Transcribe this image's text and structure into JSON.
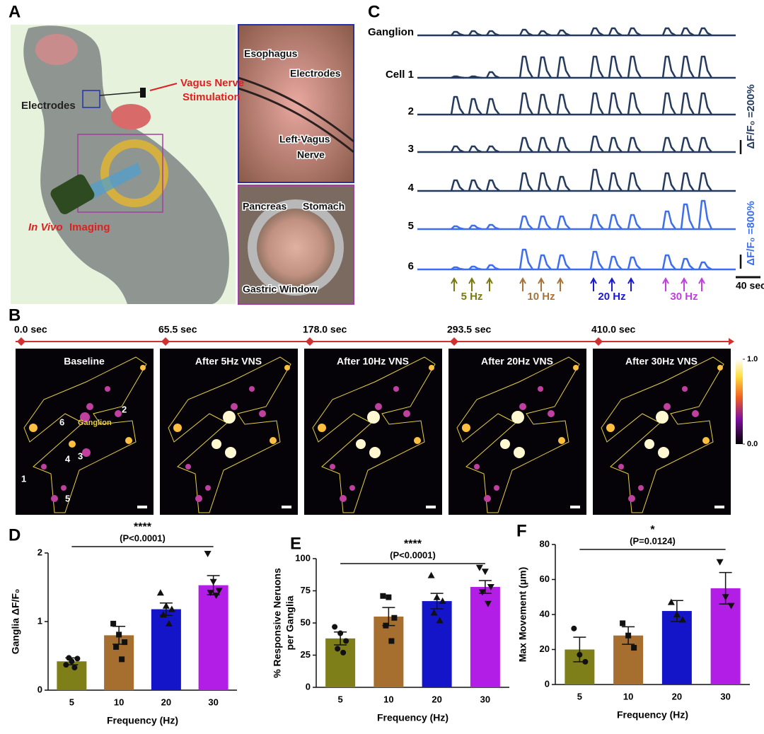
{
  "panel_a": {
    "label": "A",
    "stimulation": [
      "Vagus Nerve",
      "Stimulation"
    ],
    "electrodes": "Electrodes",
    "imaging": [
      "In Vivo",
      "Imaging"
    ],
    "photo_top": [
      "Esophagus",
      "Electrodes",
      "Left-Vagus",
      "Nerve"
    ],
    "photo_bottom": [
      "Pancreas",
      "Stomach",
      "Gastric Window"
    ]
  },
  "panel_b": {
    "label": "B",
    "times": [
      "0.0 sec",
      "65.5 sec",
      "178.0 sec",
      "293.5 sec",
      "410.0 sec"
    ],
    "titles": [
      "Baseline",
      "After 5Hz VNS",
      "After 10Hz VNS",
      "After 20Hz VNS",
      "After 30Hz VNS"
    ],
    "ganglion": "Ganglion",
    "cells": [
      "1",
      "2",
      "3",
      "4",
      "5",
      "6"
    ],
    "colorbar_ticks": [
      {
        "value": 1,
        "label": "1.0"
      },
      {
        "value": 0,
        "label": "0.0"
      }
    ]
  },
  "panel_c": {
    "label": "C",
    "groups": [
      {
        "color": "#243a5e",
        "scale": {
          "value": 200,
          "label": "ΔF/F₀ =200%"
        },
        "rows": [
          {
            "name": "Ganglion",
            "peaks": [
              50,
              60,
              60,
              80,
              60,
              70,
              100,
              100,
              100,
              100,
              100,
              100
            ]
          },
          {
            "name": "Cell 1",
            "peaks": [
              20,
              20,
              80,
              300,
              290,
              290,
              300,
              300,
              300,
              300,
              300,
              300
            ]
          },
          {
            "name": "2",
            "peaks": [
              250,
              220,
              220,
              300,
              280,
              280,
              300,
              300,
              300,
              300,
              300,
              300
            ]
          },
          {
            "name": "3",
            "peaks": [
              80,
              80,
              80,
              200,
              200,
              200,
              220,
              200,
              200,
              200,
              200,
              200
            ]
          },
          {
            "name": "4",
            "peaks": [
              150,
              150,
              150,
              250,
              250,
              200,
              300,
              250,
              250,
              250,
              250,
              250
            ]
          }
        ]
      },
      {
        "color": "#3d6ef0",
        "scale": {
          "value": 800,
          "label": "ΔF/F₀ =800%"
        },
        "rows": [
          {
            "name": "5",
            "peaks": [
              160,
              200,
              240,
              720,
              720,
              720,
              800,
              800,
              800,
              1000,
              1400,
              1600
            ]
          },
          {
            "name": "6",
            "peaks": [
              120,
              160,
              240,
              1120,
              800,
              800,
              1000,
              720,
              680,
              800,
              600,
              400
            ]
          }
        ]
      }
    ],
    "time_bar": {
      "value": 40,
      "label": "40 sec"
    },
    "frequencies": [
      {
        "label": "5 Hz",
        "color": "#7a7a10"
      },
      {
        "label": "10 Hz",
        "color": "#a8743a"
      },
      {
        "label": "20 Hz",
        "color": "#1a1ad0"
      },
      {
        "label": "30 Hz",
        "color": "#c040e0"
      }
    ]
  },
  "chart_data": [
    {
      "type": "bar",
      "label": "D",
      "annotation": "****",
      "subtitle": "(P<0.0001)",
      "categories": [
        "5",
        "10",
        "20",
        "30"
      ],
      "values": [
        0.42,
        0.8,
        1.18,
        1.53
      ],
      "errors": [
        0.05,
        0.13,
        0.09,
        0.14
      ],
      "points": [
        [
          0.37,
          0.42,
          0.46,
          0.47,
          0.33
        ],
        [
          0.97,
          0.81,
          0.7,
          0.63,
          0.45
        ],
        [
          1.42,
          1.23,
          1.18,
          1.1,
          0.97
        ],
        [
          1.99,
          1.58,
          1.45,
          1.42,
          1.38
        ]
      ],
      "colors": [
        "#7f7f1a",
        "#a66f2f",
        "#1414c8",
        "#b31ee6"
      ],
      "ylim": [
        0,
        2
      ],
      "yticks": [
        0,
        1,
        2
      ],
      "xlabel": "Frequency (Hz)",
      "ylabel": [
        "Ganglia ΔF/F₀"
      ]
    },
    {
      "type": "bar",
      "label": "E",
      "annotation": "****",
      "subtitle": "(P<0.0001)",
      "categories": [
        "5",
        "10",
        "20",
        "30"
      ],
      "values": [
        38,
        55,
        67,
        78
      ],
      "errors": [
        5,
        7,
        6,
        5
      ],
      "points": [
        [
          47,
          42,
          36,
          30,
          27
        ],
        [
          71,
          70,
          54,
          48,
          36
        ],
        [
          87,
          70,
          67,
          58,
          52
        ],
        [
          93,
          90,
          78,
          74,
          65
        ]
      ],
      "colors": [
        "#7f7f1a",
        "#a66f2f",
        "#1414c8",
        "#b31ee6"
      ],
      "ylim": [
        0,
        100
      ],
      "yticks": [
        0,
        25,
        50,
        75,
        100
      ],
      "xlabel": "Frequency (Hz)",
      "ylabel": [
        "% Responsive Neruons",
        "per Ganglia"
      ]
    },
    {
      "type": "bar",
      "label": "F",
      "annotation": "*",
      "subtitle": "(P=0.0124)",
      "categories": [
        "5",
        "10",
        "20",
        "30"
      ],
      "values": [
        20,
        28,
        42,
        55
      ],
      "errors": [
        7,
        5,
        6,
        9
      ],
      "points": [
        [
          32,
          17,
          13
        ],
        [
          35,
          28,
          21
        ],
        [
          47,
          40,
          37
        ],
        [
          70,
          50,
          45
        ]
      ],
      "colors": [
        "#7f7f1a",
        "#a66f2f",
        "#1414c8",
        "#b31ee6"
      ],
      "ylim": [
        0,
        80
      ],
      "yticks": [
        0,
        20,
        40,
        60,
        80
      ],
      "xlabel": "Frequency (Hz)",
      "ylabel": [
        "Max Movement (μm)"
      ]
    }
  ]
}
